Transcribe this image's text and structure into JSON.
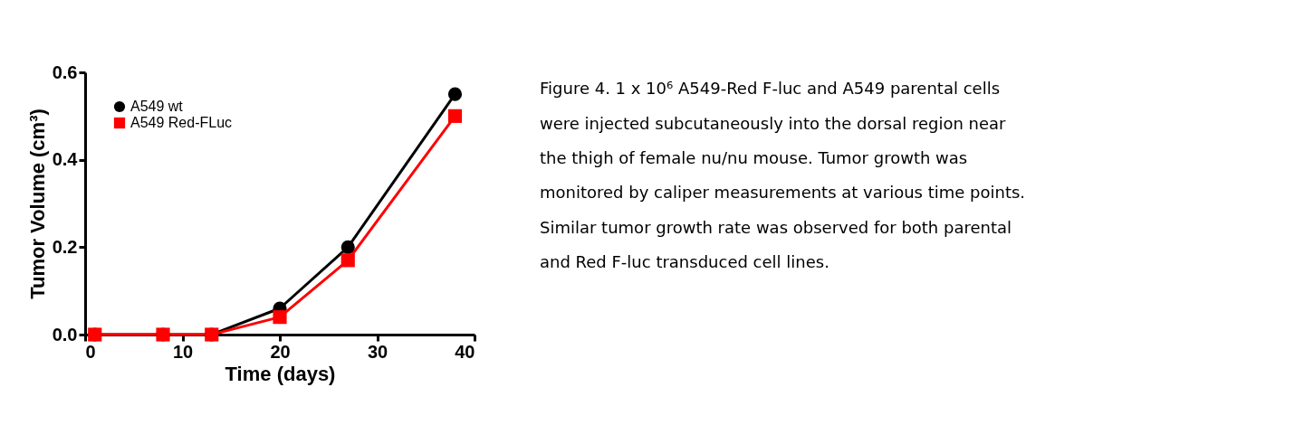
{
  "chart_data": {
    "type": "line",
    "xlabel": "Time (days)",
    "ylabel": "Tumor Volume (cm³)",
    "xlim": [
      0,
      40
    ],
    "xticks": [
      0,
      10,
      20,
      30,
      40
    ],
    "ylim": [
      0,
      0.6
    ],
    "yticks": [
      {
        "value": 0,
        "label": "0.0"
      },
      0.2,
      0.4,
      0.6
    ],
    "grid": false,
    "legend": "top left",
    "line_style": "solid",
    "series": [
      {
        "name": "A549 wt",
        "color": "#000000",
        "marker": "circle",
        "x": [
          1,
          8,
          13,
          20,
          27,
          38
        ],
        "values": [
          0,
          0,
          0,
          0.06,
          0.2,
          0.55
        ]
      },
      {
        "name": "A549 Red-FLuc",
        "color": "#ff0000",
        "marker": "square",
        "x": [
          1,
          8,
          13,
          20,
          27,
          38
        ],
        "values": [
          0,
          0,
          0,
          0.04,
          0.17,
          0.5
        ]
      }
    ],
    "annotations": [
      "Figure 4. 1 x 10⁶ A549-Red F-luc and A549 parental cells were injected subcutaneously into the dorsal region near the thigh of female nu/nu mouse. Tumor growth was monitored by caliper measurements at various time points. Similar tumor growth rate was observed for both parental and Red F-luc transduced cell lines."
    ]
  }
}
